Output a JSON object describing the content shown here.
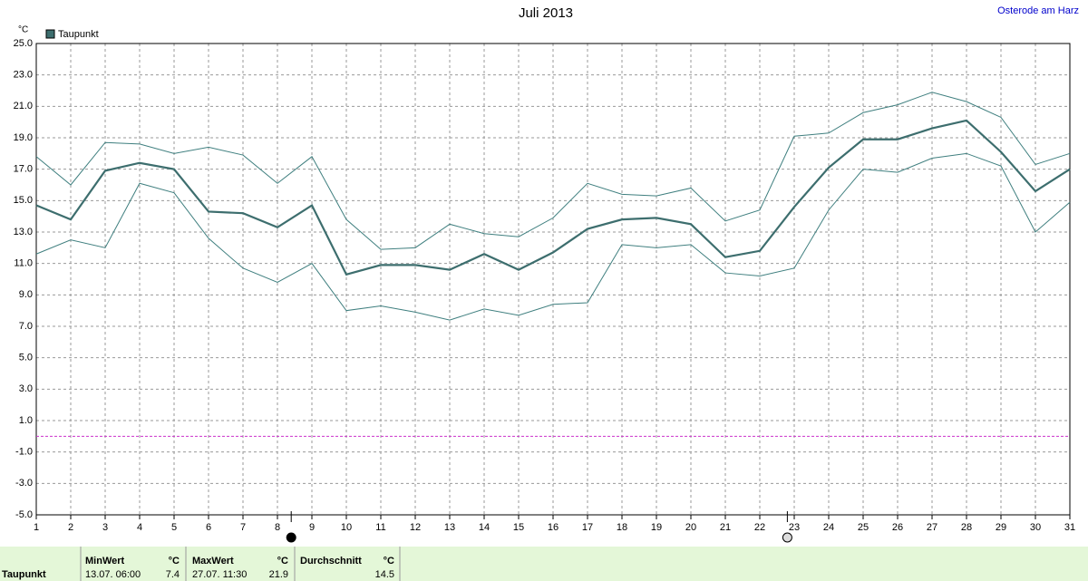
{
  "chart_data": {
    "type": "line",
    "title": "Juli 2013",
    "location": "Osterode am Harz",
    "y_unit": "°C",
    "x": [
      1,
      2,
      3,
      4,
      5,
      6,
      7,
      8,
      9,
      10,
      11,
      12,
      13,
      14,
      15,
      16,
      17,
      18,
      19,
      20,
      21,
      22,
      23,
      24,
      25,
      26,
      27,
      28,
      29,
      30,
      31
    ],
    "series": [
      {
        "name": "Taupunkt",
        "color": "#3d6e6e",
        "width": 2.2,
        "legend": true,
        "values": [
          14.7,
          13.8,
          16.9,
          17.4,
          17.0,
          14.3,
          14.2,
          13.3,
          14.7,
          10.3,
          10.9,
          10.9,
          10.6,
          11.6,
          10.6,
          11.7,
          13.2,
          13.8,
          13.9,
          13.5,
          11.4,
          11.8,
          14.6,
          17.1,
          18.9,
          18.9,
          19.6,
          20.1,
          18.1,
          15.6,
          17.0
        ]
      },
      {
        "color": "#3f7f7f",
        "width": 1,
        "values": [
          17.8,
          16.0,
          18.7,
          18.6,
          18.0,
          18.4,
          17.9,
          16.1,
          17.8,
          13.8,
          11.9,
          12.0,
          13.5,
          12.9,
          12.7,
          13.9,
          16.1,
          15.4,
          15.3,
          15.8,
          13.7,
          14.4,
          19.1,
          19.3,
          20.6,
          21.1,
          21.9,
          21.3,
          20.3,
          17.3,
          18.0
        ]
      },
      {
        "color": "#3f7f7f",
        "width": 1,
        "values": [
          11.6,
          12.5,
          12.0,
          16.1,
          15.5,
          12.6,
          10.7,
          9.8,
          11.0,
          8.0,
          8.3,
          7.9,
          7.4,
          8.1,
          7.7,
          8.4,
          8.5,
          12.2,
          12.0,
          12.2,
          10.4,
          10.2,
          10.7,
          14.4,
          17.0,
          16.8,
          17.7,
          18.0,
          17.2,
          13.0,
          14.9
        ]
      }
    ],
    "xlim": [
      1,
      31
    ],
    "xticks": [
      1,
      2,
      3,
      4,
      5,
      6,
      7,
      8,
      9,
      10,
      11,
      12,
      13,
      14,
      15,
      16,
      17,
      18,
      19,
      20,
      21,
      22,
      23,
      24,
      25,
      26,
      27,
      28,
      29,
      30,
      31
    ],
    "ylim": [
      -5,
      25
    ],
    "yticks": [
      {
        "value": -5,
        "label": "-5.0"
      },
      {
        "value": -3,
        "label": "-3.0"
      },
      {
        "value": -1,
        "label": "-1.0"
      },
      {
        "value": 1,
        "label": "1.0"
      },
      {
        "value": 3,
        "label": "3.0"
      },
      {
        "value": 5,
        "label": "5.0"
      },
      {
        "value": 7,
        "label": "7.0"
      },
      {
        "value": 9,
        "label": "9.0"
      },
      {
        "value": 11,
        "label": "11.0"
      },
      {
        "value": 13,
        "label": "13.0"
      },
      {
        "value": 15,
        "label": "15.0"
      },
      {
        "value": 17,
        "label": "17.0"
      },
      {
        "value": 19,
        "label": "19.0"
      },
      {
        "value": 21,
        "label": "21.0"
      },
      {
        "value": 23,
        "label": "23.0"
      },
      {
        "value": 25,
        "label": "25.0"
      }
    ],
    "grid": true,
    "grid_color": "#999999",
    "hlines": [
      {
        "value": 0,
        "color": "#cc33cc"
      }
    ],
    "moon_phases": [
      {
        "x": 8.4,
        "phase": "new"
      },
      {
        "x": 22.8,
        "phase": "full"
      }
    ]
  },
  "summary": {
    "label": "Taupunkt",
    "columns": [
      {
        "header": "MinWert",
        "unit": "°C",
        "when": "13.07.  06:00",
        "value": 7.4
      },
      {
        "header": "MaxWert",
        "unit": "°C",
        "when": "27.07.  11:30",
        "value": 21.9
      },
      {
        "header": "Durchschnitt",
        "unit": "°C",
        "value": 14.5
      }
    ]
  }
}
